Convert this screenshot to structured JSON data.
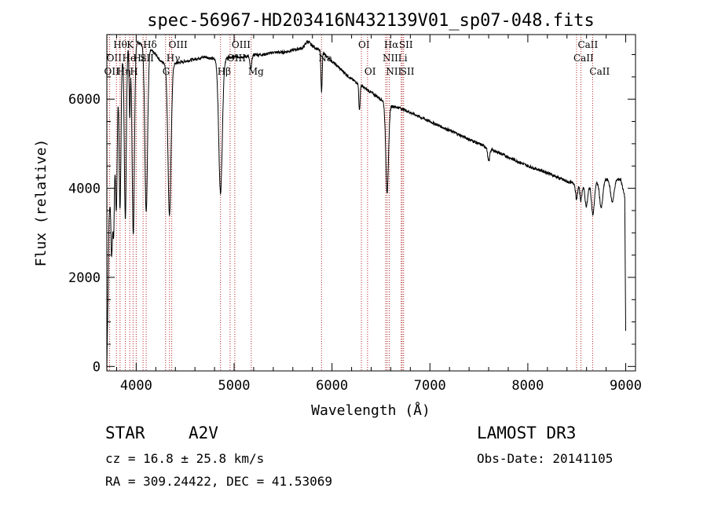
{
  "chart_data": {
    "type": "line",
    "title": "spec-56967-HD203416N432139V01_sp07-048.fits",
    "xlabel": "Wavelength (Å)",
    "ylabel": "Flux (relative)",
    "xlim": [
      3700,
      9100
    ],
    "ylim": [
      -100,
      7450
    ],
    "x_ticks": [
      4000,
      5000,
      6000,
      7000,
      8000,
      9000
    ],
    "y_ticks": [
      0,
      2000,
      4000,
      6000
    ],
    "x_tick_labels": [
      "4000",
      "5000",
      "6000",
      "7000",
      "8000",
      "9000"
    ],
    "y_tick_labels": [
      "0",
      "2000",
      "4000",
      "6000"
    ],
    "line_color": "#000000",
    "marker_color": "#b22222",
    "continuum": [
      {
        "x": 3700,
        "y": 0
      },
      {
        "x": 3712,
        "y": 1500
      },
      {
        "x": 3722,
        "y": 3300
      },
      {
        "x": 3760,
        "y": 5000
      },
      {
        "x": 3800,
        "y": 6300
      },
      {
        "x": 3850,
        "y": 6900
      },
      {
        "x": 3900,
        "y": 7150
      },
      {
        "x": 3950,
        "y": 7250
      },
      {
        "x": 4000,
        "y": 7300
      },
      {
        "x": 4050,
        "y": 7250
      },
      {
        "x": 4100,
        "y": 7200
      },
      {
        "x": 4150,
        "y": 7100
      },
      {
        "x": 4200,
        "y": 7000
      },
      {
        "x": 4250,
        "y": 6850
      },
      {
        "x": 4300,
        "y": 6800
      },
      {
        "x": 4400,
        "y": 6800
      },
      {
        "x": 4500,
        "y": 6850
      },
      {
        "x": 4600,
        "y": 6900
      },
      {
        "x": 4700,
        "y": 6950
      },
      {
        "x": 4800,
        "y": 6900
      },
      {
        "x": 4900,
        "y": 6900
      },
      {
        "x": 5000,
        "y": 6950
      },
      {
        "x": 5100,
        "y": 6950
      },
      {
        "x": 5200,
        "y": 7000
      },
      {
        "x": 5300,
        "y": 7000
      },
      {
        "x": 5400,
        "y": 7050
      },
      {
        "x": 5500,
        "y": 7050
      },
      {
        "x": 5600,
        "y": 7100
      },
      {
        "x": 5700,
        "y": 7150
      },
      {
        "x": 5750,
        "y": 7300
      },
      {
        "x": 5800,
        "y": 7200
      },
      {
        "x": 5900,
        "y": 7050
      },
      {
        "x": 6000,
        "y": 6850
      },
      {
        "x": 6100,
        "y": 6650
      },
      {
        "x": 6200,
        "y": 6450
      },
      {
        "x": 6300,
        "y": 6300
      },
      {
        "x": 6400,
        "y": 6150
      },
      {
        "x": 6500,
        "y": 6000
      },
      {
        "x": 6600,
        "y": 5850
      },
      {
        "x": 6700,
        "y": 5800
      },
      {
        "x": 6800,
        "y": 5700
      },
      {
        "x": 7000,
        "y": 5500
      },
      {
        "x": 7200,
        "y": 5300
      },
      {
        "x": 7400,
        "y": 5100
      },
      {
        "x": 7600,
        "y": 4900
      },
      {
        "x": 7800,
        "y": 4700
      },
      {
        "x": 8000,
        "y": 4500
      },
      {
        "x": 8200,
        "y": 4350
      },
      {
        "x": 8400,
        "y": 4150
      },
      {
        "x": 8600,
        "y": 4050
      },
      {
        "x": 8800,
        "y": 4200
      },
      {
        "x": 8950,
        "y": 4200
      },
      {
        "x": 8990,
        "y": 3800
      },
      {
        "x": 9000,
        "y": 800
      }
    ],
    "absorption_lines": [
      {
        "center": 3750,
        "depth": 2000,
        "width": 8
      },
      {
        "center": 3770,
        "depth": 2300,
        "width": 8
      },
      {
        "center": 3797,
        "depth": 2700,
        "width": 9
      },
      {
        "center": 3835,
        "depth": 3200,
        "width": 9
      },
      {
        "center": 3889,
        "depth": 3800,
        "width": 10
      },
      {
        "center": 3934,
        "depth": 1600,
        "width": 6
      },
      {
        "center": 3970,
        "depth": 4300,
        "width": 12
      },
      {
        "center": 4102,
        "depth": 3700,
        "width": 14
      },
      {
        "center": 4340,
        "depth": 3400,
        "width": 16
      },
      {
        "center": 4861,
        "depth": 3000,
        "width": 18
      },
      {
        "center": 5170,
        "depth": 300,
        "width": 10
      },
      {
        "center": 5893,
        "depth": 900,
        "width": 6
      },
      {
        "center": 6280,
        "depth": 600,
        "width": 6
      },
      {
        "center": 6563,
        "depth": 2000,
        "width": 14
      },
      {
        "center": 7600,
        "depth": 300,
        "width": 10
      },
      {
        "center": 8498,
        "depth": 350,
        "width": 10
      },
      {
        "center": 8542,
        "depth": 350,
        "width": 10
      },
      {
        "center": 8598,
        "depth": 450,
        "width": 14
      },
      {
        "center": 8665,
        "depth": 700,
        "width": 14
      },
      {
        "center": 8750,
        "depth": 600,
        "width": 16
      },
      {
        "center": 8863,
        "depth": 500,
        "width": 18
      }
    ],
    "marker_lines": [
      {
        "x": 3704,
        "label": "OII",
        "row": 2
      },
      {
        "x": 3729,
        "label": "OII",
        "row": 1
      },
      {
        "x": 3798,
        "label": "Hθ",
        "row": 0
      },
      {
        "x": 3835,
        "label": "Hη",
        "row": 2
      },
      {
        "x": 3889,
        "label": "He",
        "row": 1
      },
      {
        "x": 3934,
        "label": "K",
        "row": 0
      },
      {
        "x": 3968,
        "label": "H",
        "row": 2
      },
      {
        "x": 4000,
        "label": "Hε",
        "row": 1
      },
      {
        "x": 4102,
        "label": "Hδ",
        "row": 0
      },
      {
        "x": 4070,
        "label": "SII",
        "row": 1
      },
      {
        "x": 4300,
        "label": "G",
        "row": 2
      },
      {
        "x": 4340,
        "label": "Hγ",
        "row": 1
      },
      {
        "x": 4363,
        "label": "OIII",
        "row": 0
      },
      {
        "x": 4861,
        "label": "Hβ",
        "row": 2
      },
      {
        "x": 4959,
        "label": "OIII",
        "row": 1
      },
      {
        "x": 5007,
        "label": "OIII",
        "row": 0
      },
      {
        "x": 5175,
        "label": "Mg",
        "row": 2
      },
      {
        "x": 5893,
        "label": "Na",
        "row": 1
      },
      {
        "x": 6300,
        "label": "OI",
        "row": 0
      },
      {
        "x": 6363,
        "label": "OI",
        "row": 2
      },
      {
        "x": 6548,
        "label": "NII",
        "row": 1
      },
      {
        "x": 6563,
        "label": "Hα",
        "row": 0
      },
      {
        "x": 6584,
        "label": "NII",
        "row": 2
      },
      {
        "x": 6707,
        "label": "Li",
        "row": 1
      },
      {
        "x": 6716,
        "label": "SII",
        "row": 0
      },
      {
        "x": 6731,
        "label": "SII",
        "row": 2
      },
      {
        "x": 8498,
        "label": "CaII",
        "row": 1
      },
      {
        "x": 8542,
        "label": "CaII",
        "row": 0
      },
      {
        "x": 8662,
        "label": "CaII",
        "row": 2
      }
    ]
  },
  "info": {
    "object_class": "STAR",
    "subclass": "A2V",
    "survey": "LAMOST DR3",
    "cz": "cz = 16.8 ± 25.8 km/s",
    "obs_date": "Obs-Date: 20141105",
    "coords": "RA = 309.24422, DEC =  41.53069"
  }
}
